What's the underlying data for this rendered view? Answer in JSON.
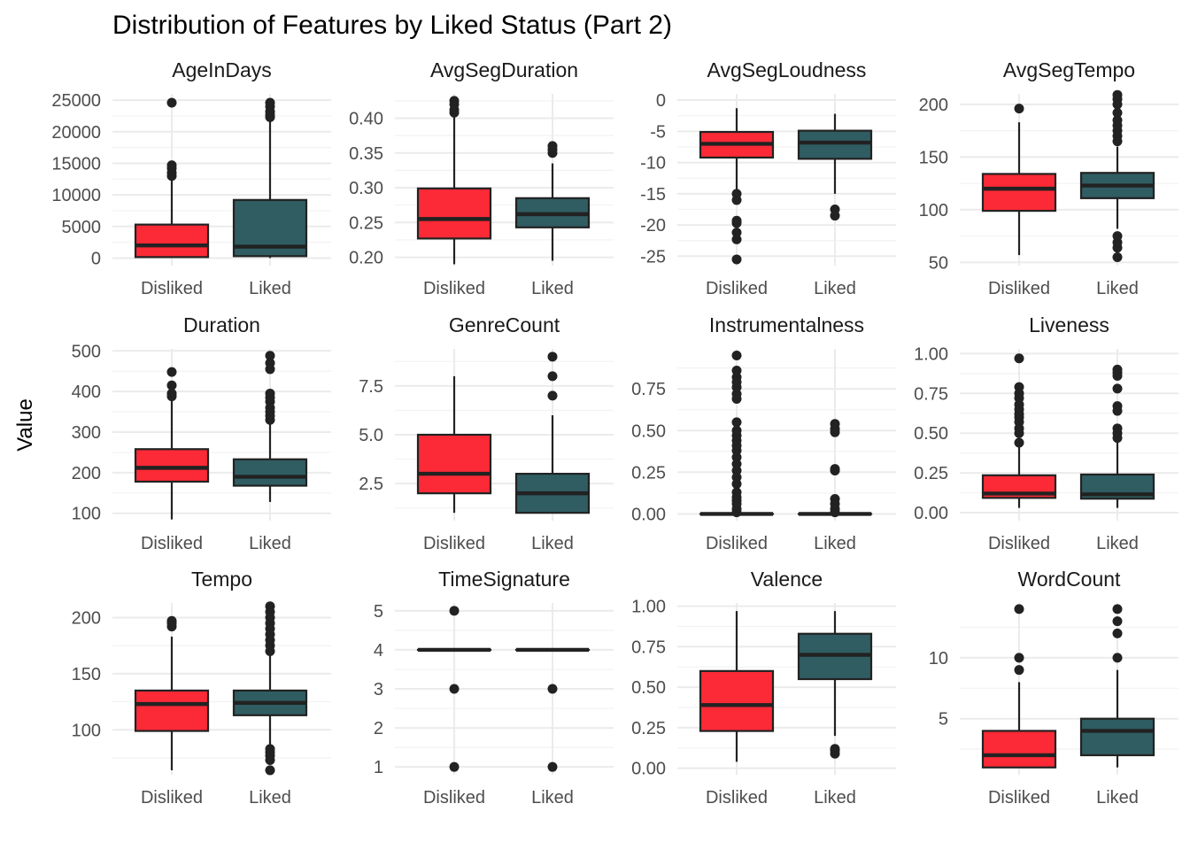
{
  "title": "Distribution of Features by Liked Status (Part 2)",
  "ylabel": "Value",
  "colors": {
    "Disliked": "#FB2A36",
    "Liked": "#2F5D62",
    "outline": "#222222",
    "grid": "#EBEBEB"
  },
  "chart_data": {
    "type": "boxplot",
    "categories": [
      "Disliked",
      "Liked"
    ],
    "facets": [
      {
        "name": "AgeInDays",
        "ylim": [
          -1200,
          26000
        ],
        "yticks": [
          0,
          5000,
          10000,
          15000,
          20000,
          25000
        ],
        "ytick_labels": [
          "0",
          "5000",
          "10000",
          "15000",
          "20000",
          "25000"
        ],
        "boxes": [
          {
            "group": "Disliked",
            "whisker_low": 0,
            "q1": 150,
            "median": 2000,
            "q3": 5300,
            "whisker_high": 12500,
            "outliers": [
              13000,
              13500,
              14200,
              14700,
              24600
            ]
          },
          {
            "group": "Liked",
            "whisker_low": 0,
            "q1": 300,
            "median": 1800,
            "q3": 9200,
            "whisker_high": 21800,
            "outliers": [
              22300,
              22700,
              23200,
              24000,
              24600
            ]
          }
        ]
      },
      {
        "name": "AvgSegDuration",
        "ylim": [
          0.188,
          0.435
        ],
        "yticks": [
          0.2,
          0.25,
          0.3,
          0.35,
          0.4
        ],
        "ytick_labels": [
          "0.20",
          "0.25",
          "0.30",
          "0.35",
          "0.40"
        ],
        "boxes": [
          {
            "group": "Disliked",
            "whisker_low": 0.19,
            "q1": 0.227,
            "median": 0.255,
            "q3": 0.299,
            "whisker_high": 0.405,
            "outliers": [
              0.408,
              0.412,
              0.42,
              0.425
            ]
          },
          {
            "group": "Liked",
            "whisker_low": 0.195,
            "q1": 0.243,
            "median": 0.262,
            "q3": 0.285,
            "whisker_high": 0.335,
            "outliers": [
              0.35,
              0.355,
              0.36
            ]
          }
        ]
      },
      {
        "name": "AvgSegLoudness",
        "ylim": [
          -26.5,
          1
        ],
        "yticks": [
          -25,
          -20,
          -15,
          -10,
          -5,
          0
        ],
        "ytick_labels": [
          "-25",
          "-20",
          "-15",
          "-10",
          "-5",
          "0"
        ],
        "boxes": [
          {
            "group": "Disliked",
            "whisker_low": -14.5,
            "q1": -9.2,
            "median": -7.0,
            "q3": -5.1,
            "whisker_high": -1.3,
            "outliers": [
              -15.0,
              -16.0,
              -19.3,
              -19.7,
              -21.2,
              -22.3,
              -25.5
            ]
          },
          {
            "group": "Liked",
            "whisker_low": -15.0,
            "q1": -9.4,
            "median": -6.8,
            "q3": -4.9,
            "whisker_high": -2.2,
            "outliers": [
              -17.5,
              -18.5
            ]
          }
        ]
      },
      {
        "name": "AvgSegTempo",
        "ylim": [
          47,
          210
        ],
        "yticks": [
          50,
          100,
          150,
          200
        ],
        "ytick_labels": [
          "50",
          "100",
          "150",
          "200"
        ],
        "boxes": [
          {
            "group": "Disliked",
            "whisker_low": 57,
            "q1": 99,
            "median": 120,
            "q3": 134,
            "whisker_high": 183,
            "outliers": [
              196
            ]
          },
          {
            "group": "Liked",
            "whisker_low": 82,
            "q1": 111,
            "median": 123,
            "q3": 135,
            "whisker_high": 160,
            "outliers": [
              55,
              64,
              69,
              75,
              165,
              170,
              175,
              180,
              185,
              192,
              200,
              205,
              209
            ]
          }
        ]
      },
      {
        "name": "Duration",
        "ylim": [
          82,
          505
        ],
        "yticks": [
          100,
          200,
          300,
          400,
          500
        ],
        "ytick_labels": [
          "100",
          "200",
          "300",
          "400",
          "500"
        ],
        "boxes": [
          {
            "group": "Disliked",
            "whisker_low": 85,
            "q1": 178,
            "median": 212,
            "q3": 258,
            "whisker_high": 378,
            "outliers": [
              388,
              395,
              415,
              448
            ]
          },
          {
            "group": "Liked",
            "whisker_low": 128,
            "q1": 168,
            "median": 190,
            "q3": 233,
            "whisker_high": 320,
            "outliers": [
              330,
              340,
              350,
              360,
              375,
              385,
              395,
              455,
              470,
              488
            ]
          }
        ]
      },
      {
        "name": "GenreCount",
        "ylim": [
          0.6,
          9.4
        ],
        "yticks": [
          2.5,
          5,
          7.5
        ],
        "ytick_labels": [
          "2.5",
          "5.0",
          "7.5"
        ],
        "boxes": [
          {
            "group": "Disliked",
            "whisker_low": 1,
            "q1": 2,
            "median": 3,
            "q3": 5,
            "whisker_high": 8,
            "outliers": []
          },
          {
            "group": "Liked",
            "whisker_low": 1,
            "q1": 1,
            "median": 2,
            "q3": 3,
            "whisker_high": 6,
            "outliers": [
              7,
              8,
              9
            ]
          }
        ]
      },
      {
        "name": "Instrumentalness",
        "ylim": [
          -0.04,
          0.99
        ],
        "yticks": [
          0,
          0.25,
          0.5,
          0.75
        ],
        "ytick_labels": [
          "0.00",
          "0.25",
          "0.50",
          "0.75"
        ],
        "boxes": [
          {
            "group": "Disliked",
            "whisker_low": 0,
            "q1": 0,
            "median": 0,
            "q3": 0,
            "whisker_high": 0,
            "outliers": [
              0.01,
              0.03,
              0.06,
              0.08,
              0.1,
              0.13,
              0.18,
              0.22,
              0.26,
              0.3,
              0.34,
              0.38,
              0.41,
              0.44,
              0.47,
              0.5,
              0.55,
              0.69,
              0.72,
              0.76,
              0.79,
              0.82,
              0.86,
              0.95
            ]
          },
          {
            "group": "Liked",
            "whisker_low": 0,
            "q1": 0,
            "median": 0,
            "q3": 0,
            "whisker_high": 0,
            "outliers": [
              0.01,
              0.03,
              0.06,
              0.09,
              0.26,
              0.27,
              0.49,
              0.51,
              0.54
            ]
          }
        ]
      },
      {
        "name": "Liveness",
        "ylim": [
          -0.05,
          1.03
        ],
        "yticks": [
          0,
          0.25,
          0.5,
          0.75,
          1.0
        ],
        "ytick_labels": [
          "0.00",
          "0.25",
          "0.50",
          "0.75",
          "1.00"
        ],
        "boxes": [
          {
            "group": "Disliked",
            "whisker_low": 0.03,
            "q1": 0.093,
            "median": 0.12,
            "q3": 0.235,
            "whisker_high": 0.43,
            "outliers": [
              0.44,
              0.5,
              0.53,
              0.57,
              0.6,
              0.62,
              0.65,
              0.68,
              0.72,
              0.75,
              0.79,
              0.97
            ]
          },
          {
            "group": "Liked",
            "whisker_low": 0.03,
            "q1": 0.088,
            "median": 0.115,
            "q3": 0.24,
            "whisker_high": 0.45,
            "outliers": [
              0.47,
              0.5,
              0.53,
              0.64,
              0.67,
              0.78,
              0.86,
              0.88,
              0.9
            ]
          }
        ]
      },
      {
        "name": "Tempo",
        "ylim": [
          60,
          213
        ],
        "yticks": [
          100,
          150,
          200
        ],
        "ytick_labels": [
          "100",
          "150",
          "200"
        ],
        "boxes": [
          {
            "group": "Disliked",
            "whisker_low": 64,
            "q1": 99,
            "median": 123,
            "q3": 135,
            "whisker_high": 183,
            "outliers": [
              192,
              195,
              197
            ]
          },
          {
            "group": "Liked",
            "whisker_low": 84,
            "q1": 113,
            "median": 124,
            "q3": 135,
            "whisker_high": 167,
            "outliers": [
              64,
              73,
              77,
              80,
              83,
              170,
              175,
              180,
              185,
              190,
              195,
              200,
              205,
              210
            ]
          }
        ]
      },
      {
        "name": "TimeSignature",
        "ylim": [
          0.8,
          5.2
        ],
        "yticks": [
          1,
          2,
          3,
          4,
          5
        ],
        "ytick_labels": [
          "1",
          "2",
          "3",
          "4",
          "5"
        ],
        "boxes": [
          {
            "group": "Disliked",
            "whisker_low": 4,
            "q1": 4,
            "median": 4,
            "q3": 4,
            "whisker_high": 4,
            "outliers": [
              1,
              3,
              5
            ]
          },
          {
            "group": "Liked",
            "whisker_low": 4,
            "q1": 4,
            "median": 4,
            "q3": 4,
            "whisker_high": 4,
            "outliers": [
              1,
              3
            ]
          }
        ]
      },
      {
        "name": "Valence",
        "ylim": [
          -0.04,
          1.02
        ],
        "yticks": [
          0,
          0.25,
          0.5,
          0.75,
          1.0
        ],
        "ytick_labels": [
          "0.00",
          "0.25",
          "0.50",
          "0.75",
          "1.00"
        ],
        "boxes": [
          {
            "group": "Disliked",
            "whisker_low": 0.04,
            "q1": 0.23,
            "median": 0.39,
            "q3": 0.6,
            "whisker_high": 0.97,
            "outliers": []
          },
          {
            "group": "Liked",
            "whisker_low": 0.2,
            "q1": 0.55,
            "median": 0.7,
            "q3": 0.83,
            "whisker_high": 0.97,
            "outliers": [
              0.09,
              0.11,
              0.12
            ]
          }
        ]
      },
      {
        "name": "WordCount",
        "ylim": [
          0.4,
          14.5
        ],
        "yticks": [
          5,
          10
        ],
        "ytick_labels": [
          "5",
          "10"
        ],
        "boxes": [
          {
            "group": "Disliked",
            "whisker_low": 1,
            "q1": 1,
            "median": 2,
            "q3": 4,
            "whisker_high": 8,
            "outliers": [
              9,
              10,
              14
            ]
          },
          {
            "group": "Liked",
            "whisker_low": 1,
            "q1": 2,
            "median": 4,
            "q3": 5,
            "whisker_high": 9,
            "outliers": [
              10,
              12,
              13,
              14
            ]
          }
        ]
      }
    ]
  }
}
